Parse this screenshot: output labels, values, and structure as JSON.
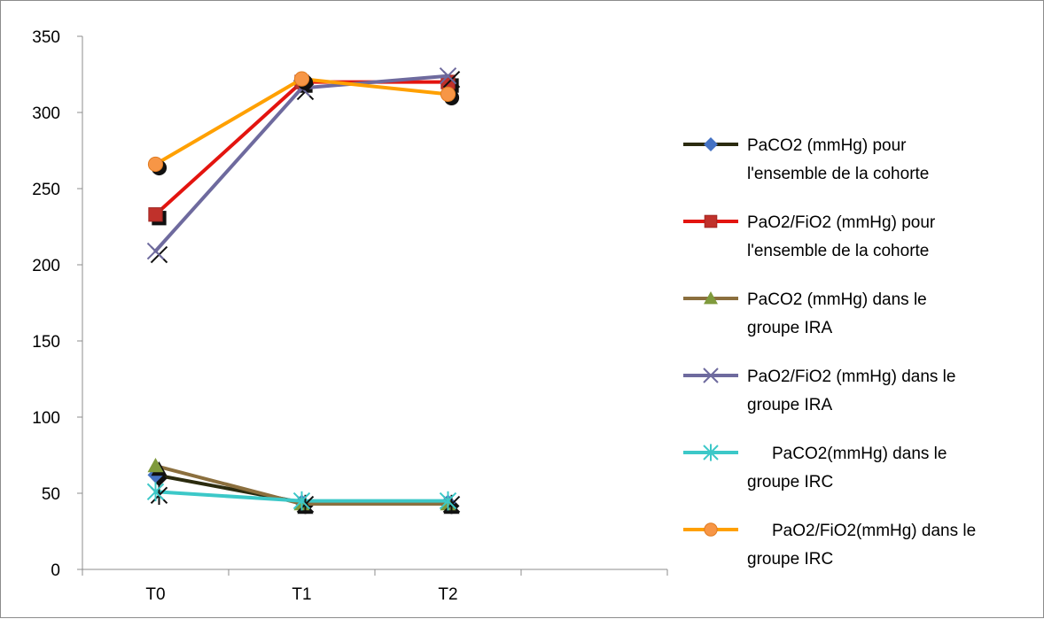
{
  "chart_data": {
    "type": "line",
    "title": "",
    "xlabel": "",
    "ylabel": "",
    "categories": [
      "T0",
      "T1",
      "T2"
    ],
    "x_slots": 4,
    "ylim": [
      0,
      350
    ],
    "yticks": [
      0,
      50,
      100,
      150,
      200,
      250,
      300,
      350
    ],
    "grid": false,
    "legend_position": "right",
    "series": [
      {
        "name": "PaCO2 (mmHg) pour l'ensemble de la cohorte",
        "legend_lines": [
          "PaCO2 (mmHg) pour",
          "l'ensemble de la cohorte"
        ],
        "values": [
          62,
          44,
          44
        ],
        "color": "#2b2b0f",
        "marker": "diamond",
        "marker_color": "#4472c4"
      },
      {
        "name": "PaO2/FiO2 (mmHg) pour l'ensemble de la cohorte",
        "legend_lines": [
          "PaO2/FiO2 (mmHg) pour",
          "l'ensemble de la cohorte"
        ],
        "values": [
          233,
          320,
          320
        ],
        "color": "#e3140f",
        "marker": "square",
        "marker_color": "#c0312b"
      },
      {
        "name": "PaCO2 (mmHg) dans le groupe IRA",
        "legend_lines": [
          "PaCO2 (mmHg) dans le",
          "groupe IRA"
        ],
        "values": [
          68,
          43,
          43
        ],
        "color": "#8b6f3e",
        "marker": "triangle",
        "marker_color": "#7f9a3c"
      },
      {
        "name": "PaO2/FiO2 (mmHg) dans le groupe IRA",
        "legend_lines": [
          "PaO2/FiO2 (mmHg) dans le",
          "groupe IRA"
        ],
        "values": [
          209,
          316,
          324
        ],
        "color": "#6e6a9e",
        "marker": "x",
        "marker_color": "#6e6a9e"
      },
      {
        "name": "PaCO2(mmHg) dans le groupe IRC",
        "legend_lines": [
          "PaCO2(mmHg) dans le",
          "groupe IRC"
        ],
        "values": [
          51,
          45,
          45
        ],
        "color": "#3cc8c8",
        "marker": "star",
        "marker_color": "#3cc8c8"
      },
      {
        "name": "PaO2/FiO2(mmHg) dans le groupe IRC",
        "legend_lines": [
          "PaO2/FiO2(mmHg) dans le",
          "groupe IRC"
        ],
        "values": [
          266,
          322,
          312
        ],
        "color": "#ffa000",
        "marker": "circle",
        "marker_color": "#f79646"
      }
    ]
  }
}
